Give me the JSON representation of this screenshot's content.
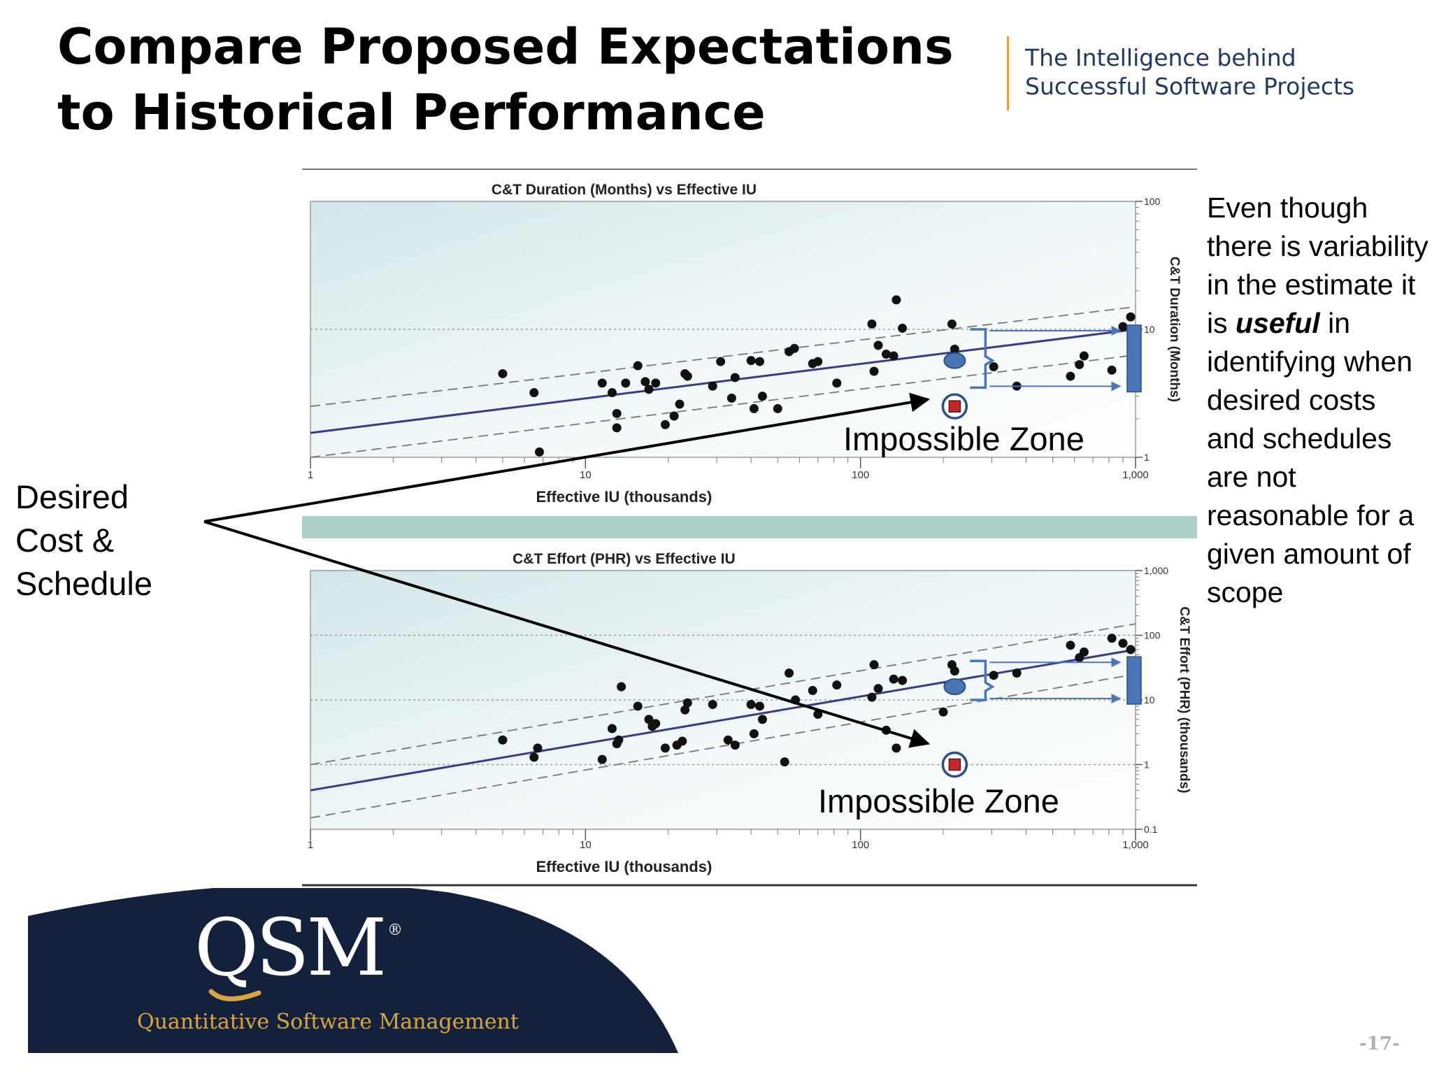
{
  "slide": {
    "title": "Compare Proposed Expectations to Historical Performance",
    "tagline_line1": "The Intelligence behind",
    "tagline_line2": "Successful Software Projects",
    "desired_label_lines": [
      "Desired",
      "Cost &",
      "Schedule"
    ],
    "side_note_before": "Even though there is variability in the estimate it is ",
    "side_note_emphasis": "useful",
    "side_note_after": " in identifying when desired costs and schedules are not reasonable for a given amount of scope",
    "impossible_zone_label": "Impossible Zone",
    "page_number": "-17-",
    "logo": {
      "wordmark": "QSM",
      "registered": "®",
      "subtitle": "Quantitative Software Management"
    },
    "colors": {
      "title": "#000000",
      "tagline": "#1f3864",
      "tagline_rule": "#e0a040",
      "logo_bg": "#14213d",
      "logo_subtitle": "#d8a640",
      "trend_line": "#3a3a8a",
      "proposed_marker": "#4a76b8",
      "desired_marker": "#c0282c",
      "arrow": "#000000",
      "band_arrows": "#4a76b8",
      "separator_band": "#a9cfc9"
    }
  },
  "chart_data": [
    {
      "type": "scatter",
      "title": "C&T Duration (Months) vs Effective IU",
      "xlabel": "Effective IU (thousands)",
      "ylabel": "C&T Duration (Months)",
      "x_scale": "log",
      "y_scale": "log",
      "xlim": [
        1,
        1000
      ],
      "ylim": [
        1,
        100
      ],
      "x_ticks": [
        "1",
        "10",
        "100",
        "1,000"
      ],
      "y_ticks": [
        "1",
        "10",
        "100"
      ],
      "y_axis_side": "right",
      "grid": true,
      "points": [
        [
          5,
          4.5
        ],
        [
          6.5,
          3.2
        ],
        [
          6.8,
          1.1
        ],
        [
          11.5,
          3.8
        ],
        [
          12.5,
          3.2
        ],
        [
          13,
          2.2
        ],
        [
          13,
          1.7
        ],
        [
          14,
          3.8
        ],
        [
          15.5,
          5.2
        ],
        [
          16.5,
          3.9
        ],
        [
          17,
          3.4
        ],
        [
          18,
          3.8
        ],
        [
          19.5,
          1.8
        ],
        [
          21,
          2.1
        ],
        [
          22,
          2.6
        ],
        [
          23,
          4.5
        ],
        [
          23.5,
          4.3
        ],
        [
          29,
          3.6
        ],
        [
          31,
          5.6
        ],
        [
          34,
          2.9
        ],
        [
          35,
          4.2
        ],
        [
          40,
          5.7
        ],
        [
          41,
          2.4
        ],
        [
          43,
          5.6
        ],
        [
          44,
          3
        ],
        [
          50,
          2.4
        ],
        [
          55,
          6.7
        ],
        [
          57.5,
          7.1
        ],
        [
          67,
          5.4
        ],
        [
          70,
          5.6
        ],
        [
          82,
          3.8
        ],
        [
          110,
          11
        ],
        [
          112,
          4.7
        ],
        [
          116,
          7.5
        ],
        [
          124,
          6.4
        ],
        [
          132,
          6.2
        ],
        [
          135,
          17
        ],
        [
          142,
          10.2
        ],
        [
          215,
          11
        ],
        [
          220,
          7
        ],
        [
          305,
          5.1
        ],
        [
          370,
          3.6
        ],
        [
          580,
          4.3
        ],
        [
          625,
          5.3
        ],
        [
          650,
          6.2
        ],
        [
          820,
          4.8
        ],
        [
          900,
          10.5
        ],
        [
          960,
          12.5
        ]
      ],
      "trend": {
        "x": [
          1,
          1000
        ],
        "y": [
          1.55,
          10
        ]
      },
      "upper_band": {
        "x": [
          1,
          1000
        ],
        "y": [
          2.5,
          15
        ]
      },
      "lower_band": {
        "x": [
          1,
          1000
        ],
        "y": [
          1.0,
          6.3
        ]
      },
      "proposed_estimate": {
        "x": 220,
        "y": 5.7,
        "band": [
          3.5,
          10
        ]
      },
      "desired_point": {
        "x": 220,
        "y": 2.5
      }
    },
    {
      "type": "scatter",
      "title": "C&T Effort (PHR) vs Effective IU",
      "xlabel": "Effective IU (thousands)",
      "ylabel": "C&T Effort (PHR) (thousands)",
      "x_scale": "log",
      "y_scale": "log",
      "xlim": [
        1,
        1000
      ],
      "ylim": [
        0.1,
        1000
      ],
      "x_ticks": [
        "1",
        "10",
        "100",
        "1,000"
      ],
      "y_ticks": [
        "0.1",
        "1",
        "10",
        "100",
        "1,000"
      ],
      "y_axis_side": "right",
      "grid": true,
      "points": [
        [
          5,
          2.4
        ],
        [
          6.5,
          1.3
        ],
        [
          6.7,
          1.8
        ],
        [
          11.5,
          1.2
        ],
        [
          12.5,
          3.6
        ],
        [
          13,
          2.1
        ],
        [
          13.2,
          2.4
        ],
        [
          13.5,
          16
        ],
        [
          15.5,
          8
        ],
        [
          17,
          5
        ],
        [
          17.5,
          3.9
        ],
        [
          18,
          4.3
        ],
        [
          19.5,
          1.8
        ],
        [
          21.5,
          2
        ],
        [
          22.5,
          2.3
        ],
        [
          23,
          7
        ],
        [
          23.5,
          9
        ],
        [
          29,
          8.5
        ],
        [
          33,
          2.4
        ],
        [
          35,
          2
        ],
        [
          40,
          8.5
        ],
        [
          41,
          3
        ],
        [
          43,
          8
        ],
        [
          44,
          5
        ],
        [
          53,
          1.1
        ],
        [
          55,
          26
        ],
        [
          58,
          10
        ],
        [
          67,
          14
        ],
        [
          70,
          6
        ],
        [
          82,
          17
        ],
        [
          110,
          11
        ],
        [
          112,
          35
        ],
        [
          116,
          15
        ],
        [
          124,
          3.4
        ],
        [
          132,
          21
        ],
        [
          135,
          1.8
        ],
        [
          142,
          20
        ],
        [
          200,
          6.5
        ],
        [
          215,
          35
        ],
        [
          220,
          28
        ],
        [
          305,
          24
        ],
        [
          370,
          26
        ],
        [
          580,
          70
        ],
        [
          625,
          45
        ],
        [
          650,
          55
        ],
        [
          820,
          90
        ],
        [
          900,
          75
        ],
        [
          960,
          60
        ]
      ],
      "trend": {
        "x": [
          1,
          1000
        ],
        "y": [
          0.4,
          60
        ]
      },
      "upper_band": {
        "x": [
          1,
          1000
        ],
        "y": [
          1.0,
          150
        ]
      },
      "lower_band": {
        "x": [
          1,
          1000
        ],
        "y": [
          0.15,
          25
        ]
      },
      "proposed_estimate": {
        "x": 220,
        "y": 16,
        "band": [
          10,
          40
        ]
      },
      "desired_point": {
        "x": 220,
        "y": 1.0
      }
    }
  ]
}
